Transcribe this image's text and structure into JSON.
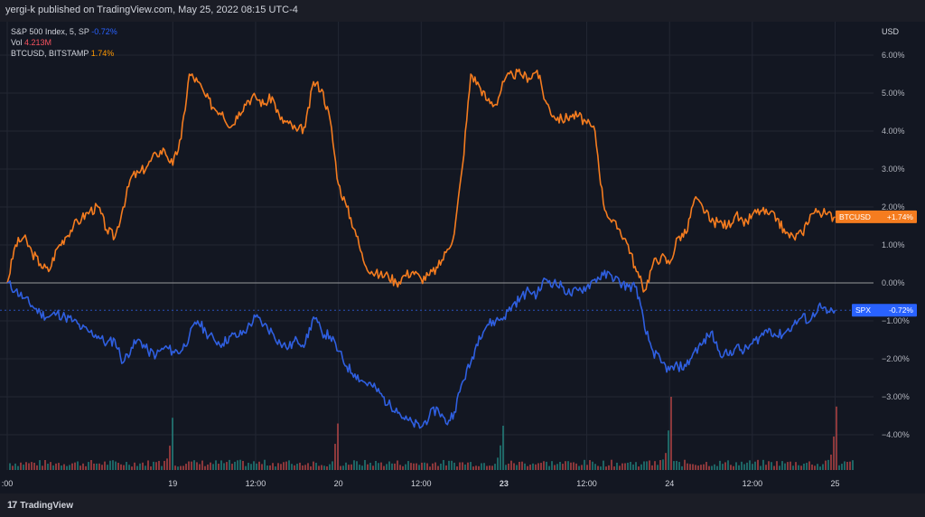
{
  "header": {
    "publisher_text": "yergi-k published on TradingView.com, May 25, 2022 08:15 UTC-4"
  },
  "legend": {
    "spx_label": "S&P 500 Index, 5, SP",
    "spx_value": "-0.72%",
    "vol_label": "Vol",
    "vol_value": "4.213M",
    "btc_label": "BTCUSD, BITSTAMP",
    "btc_value": "1.74%"
  },
  "price_scale": {
    "currency": "USD"
  },
  "badges": {
    "btc": {
      "name": "BTCUSD",
      "value": "+1.74%"
    },
    "spx": {
      "name": "SPX",
      "value": "-0.72%"
    }
  },
  "branding": {
    "name": "TradingView"
  },
  "colors": {
    "btc_line": "#f57c1f",
    "spx_line": "#2f5fe0",
    "volume_up": "#26a69a",
    "volume_down": "#ef5350",
    "zero_line": "#c8c8c8",
    "background": "#131722"
  },
  "chart_data": {
    "type": "line",
    "title": "",
    "xlabel": "",
    "ylabel": "",
    "ylim": [
      -4.8,
      6.4
    ],
    "y_ticks": [
      {
        "value": 6,
        "label": "6.00%"
      },
      {
        "value": 5,
        "label": "5.00%"
      },
      {
        "value": 4,
        "label": "4.00%"
      },
      {
        "value": 3,
        "label": "3.00%"
      },
      {
        "value": 2,
        "label": "2.00%"
      },
      {
        "value": 1,
        "label": "1.00%"
      },
      {
        "value": 0,
        "label": "0.00%"
      },
      {
        "value": -1,
        "label": "−1.00%"
      },
      {
        "value": -2,
        "label": "−2.00%"
      },
      {
        "value": -3,
        "label": "−3.00%"
      },
      {
        "value": -4,
        "label": "−4.00%"
      }
    ],
    "x_ticks": [
      {
        "pos": 0,
        "label": ":00",
        "bold": false
      },
      {
        "pos": 1,
        "label": "19",
        "bold": false
      },
      {
        "pos": 1.5,
        "label": "12:00",
        "bold": false
      },
      {
        "pos": 2,
        "label": "20",
        "bold": false
      },
      {
        "pos": 2.5,
        "label": "12:00",
        "bold": false
      },
      {
        "pos": 3,
        "label": "23",
        "bold": true
      },
      {
        "pos": 3.5,
        "label": "12:00",
        "bold": false
      },
      {
        "pos": 4,
        "label": "24",
        "bold": false
      },
      {
        "pos": 4.5,
        "label": "12:00",
        "bold": false
      },
      {
        "pos": 5,
        "label": "25",
        "bold": false
      }
    ],
    "xlim": [
      0,
      5.15
    ],
    "series": [
      {
        "name": "BTCUSD",
        "x": [
          0,
          0.05,
          0.1,
          0.15,
          0.2,
          0.25,
          0.3,
          0.35,
          0.4,
          0.45,
          0.5,
          0.55,
          0.6,
          0.65,
          0.7,
          0.75,
          0.8,
          0.85,
          0.9,
          0.95,
          1.0,
          1.05,
          1.1,
          1.15,
          1.2,
          1.25,
          1.3,
          1.35,
          1.4,
          1.45,
          1.5,
          1.55,
          1.6,
          1.65,
          1.7,
          1.75,
          1.8,
          1.85,
          1.9,
          1.95,
          2.0,
          2.05,
          2.1,
          2.15,
          2.2,
          2.25,
          2.3,
          2.35,
          2.4,
          2.45,
          2.5,
          2.55,
          2.6,
          2.65,
          2.7,
          2.75,
          2.8,
          2.85,
          2.9,
          2.95,
          3.0,
          3.05,
          3.1,
          3.15,
          3.2,
          3.25,
          3.3,
          3.35,
          3.4,
          3.45,
          3.5,
          3.55,
          3.6,
          3.65,
          3.7,
          3.75,
          3.8,
          3.85,
          3.9,
          3.95,
          4.0,
          4.05,
          4.1,
          4.15,
          4.2,
          4.25,
          4.3,
          4.35,
          4.4,
          4.45,
          4.5,
          4.55,
          4.6,
          4.65,
          4.7,
          4.75,
          4.8,
          4.85,
          4.9,
          4.95,
          5.0
        ],
        "values": [
          0.0,
          1.0,
          1.2,
          0.8,
          0.5,
          0.3,
          0.9,
          1.2,
          1.5,
          1.7,
          1.9,
          2.0,
          1.4,
          1.2,
          2.0,
          2.8,
          2.9,
          3.1,
          3.4,
          3.5,
          3.1,
          3.8,
          5.5,
          5.3,
          4.9,
          4.6,
          4.5,
          4.1,
          4.5,
          4.8,
          4.9,
          4.7,
          4.9,
          4.3,
          4.2,
          4.0,
          4.1,
          5.3,
          5.1,
          4.3,
          2.6,
          2.0,
          1.4,
          0.6,
          0.3,
          0.2,
          0.2,
          0.0,
          0.2,
          0.3,
          0.1,
          0.2,
          0.4,
          0.8,
          1.3,
          3.1,
          5.5,
          5.2,
          4.8,
          4.7,
          5.3,
          5.5,
          5.5,
          5.4,
          5.6,
          4.8,
          4.4,
          4.3,
          4.4,
          4.4,
          4.2,
          4.0,
          2.1,
          1.6,
          1.4,
          1.0,
          0.3,
          -0.2,
          0.5,
          0.7,
          0.5,
          1.2,
          1.3,
          2.2,
          2.0,
          1.6,
          1.6,
          1.5,
          1.8,
          1.5,
          1.8,
          1.9,
          1.8,
          1.7,
          1.3,
          1.2,
          1.3,
          1.8,
          1.9,
          1.8,
          1.74
        ]
      },
      {
        "name": "SPX",
        "x": [
          0,
          0.05,
          0.1,
          0.15,
          0.2,
          0.25,
          0.3,
          0.35,
          0.4,
          0.45,
          0.5,
          0.55,
          0.6,
          0.65,
          0.7,
          0.75,
          0.8,
          0.85,
          0.9,
          0.95,
          1.0,
          1.05,
          1.1,
          1.15,
          1.2,
          1.25,
          1.3,
          1.35,
          1.4,
          1.45,
          1.5,
          1.55,
          1.6,
          1.65,
          1.7,
          1.75,
          1.8,
          1.85,
          1.9,
          1.95,
          2.0,
          2.05,
          2.1,
          2.15,
          2.2,
          2.25,
          2.3,
          2.35,
          2.4,
          2.45,
          2.5,
          2.55,
          2.6,
          2.65,
          2.7,
          2.75,
          2.8,
          2.85,
          2.9,
          2.95,
          3.0,
          3.05,
          3.1,
          3.15,
          3.2,
          3.25,
          3.3,
          3.35,
          3.4,
          3.45,
          3.5,
          3.55,
          3.6,
          3.65,
          3.7,
          3.75,
          3.8,
          3.85,
          3.9,
          3.95,
          4.0,
          4.05,
          4.1,
          4.15,
          4.2,
          4.25,
          4.3,
          4.35,
          4.4,
          4.45,
          4.5,
          4.55,
          4.6,
          4.65,
          4.7,
          4.75,
          4.8,
          4.85,
          4.9,
          4.95,
          5.0
        ],
        "values": [
          0.0,
          -0.2,
          -0.4,
          -0.6,
          -0.8,
          -0.9,
          -0.8,
          -0.9,
          -1.0,
          -1.2,
          -1.3,
          -1.4,
          -1.6,
          -1.5,
          -2.1,
          -1.7,
          -1.5,
          -1.8,
          -1.9,
          -1.7,
          -1.8,
          -1.8,
          -1.4,
          -1.0,
          -1.3,
          -1.5,
          -1.6,
          -1.4,
          -1.4,
          -1.2,
          -0.9,
          -1.1,
          -1.3,
          -1.6,
          -1.7,
          -1.5,
          -1.6,
          -0.9,
          -1.3,
          -1.4,
          -1.8,
          -2.2,
          -2.4,
          -2.6,
          -2.7,
          -2.9,
          -3.2,
          -3.3,
          -3.6,
          -3.7,
          -3.8,
          -3.5,
          -3.3,
          -3.7,
          -3.4,
          -2.6,
          -2.1,
          -1.4,
          -1.1,
          -1.0,
          -0.9,
          -0.6,
          -0.4,
          -0.2,
          -0.3,
          0.1,
          0.0,
          -0.1,
          -0.3,
          -0.2,
          -0.1,
          0.1,
          0.2,
          0.2,
          0.0,
          -0.1,
          -0.1,
          -1.2,
          -1.8,
          -2.1,
          -2.3,
          -2.2,
          -2.2,
          -1.8,
          -1.6,
          -1.3,
          -1.8,
          -1.9,
          -1.7,
          -1.8,
          -1.6,
          -1.4,
          -1.2,
          -1.4,
          -1.3,
          -1.1,
          -0.9,
          -1.0,
          -0.6,
          -0.8,
          -0.72
        ]
      }
    ],
    "volume": {
      "spike_positions": [
        1.0,
        2.0,
        3.0,
        4.0,
        5.0
      ],
      "spike_heights": [
        0.95,
        0.7,
        0.93,
        0.75,
        0.65
      ],
      "baseline_level": 0.07
    }
  }
}
